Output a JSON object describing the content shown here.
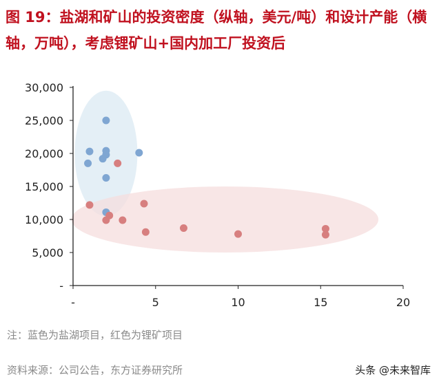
{
  "header": {
    "title": "图 19：盐湖和矿山的投资密度（纵轴，美元/吨）和设计产能（横轴，万吨），考虑锂矿山+国内加工厂投资后"
  },
  "chart_data": {
    "type": "scatter",
    "title": "",
    "xlabel": "",
    "ylabel": "",
    "xlim": [
      0,
      20
    ],
    "ylim": [
      0,
      30000
    ],
    "x_ticks": [
      0,
      5,
      10,
      15,
      20
    ],
    "x_tick_labels": [
      "-",
      "5",
      "10",
      "15",
      "20"
    ],
    "y_ticks": [
      0,
      5000,
      10000,
      15000,
      20000,
      25000,
      30000
    ],
    "y_tick_labels": [
      "-",
      "5,000",
      "10,000",
      "15,000",
      "20,000",
      "25,000",
      "30,000"
    ],
    "grid": false,
    "series": [
      {
        "color": "#7fa6d2",
        "points": [
          {
            "x": 2.0,
            "y": 25000
          },
          {
            "x": 1.0,
            "y": 20300
          },
          {
            "x": 2.0,
            "y": 20400
          },
          {
            "x": 2.0,
            "y": 19800
          },
          {
            "x": 1.8,
            "y": 19200
          },
          {
            "x": 0.9,
            "y": 18500
          },
          {
            "x": 4.0,
            "y": 20100
          },
          {
            "x": 2.0,
            "y": 16300
          },
          {
            "x": 2.0,
            "y": 11100
          }
        ]
      },
      {
        "color": "#d77f7f",
        "points": [
          {
            "x": 2.7,
            "y": 18500
          },
          {
            "x": 1.0,
            "y": 12200
          },
          {
            "x": 4.3,
            "y": 12400
          },
          {
            "x": 2.2,
            "y": 10600
          },
          {
            "x": 2.0,
            "y": 9900
          },
          {
            "x": 3.0,
            "y": 9900
          },
          {
            "x": 6.7,
            "y": 8700
          },
          {
            "x": 4.4,
            "y": 8100
          },
          {
            "x": 10.0,
            "y": 7800
          },
          {
            "x": 15.3,
            "y": 8600
          },
          {
            "x": 15.3,
            "y": 7700
          }
        ]
      }
    ],
    "highlights": [
      {
        "cx": 2.0,
        "cy": 20000,
        "rx": 1.9,
        "ry": 9500,
        "color": "#dbe9f3"
      },
      {
        "cx": 9.2,
        "cy": 10000,
        "rx": 9.3,
        "ry": 5000,
        "color": "#f5dedd"
      }
    ]
  },
  "footer": {
    "note": "注：蓝色为盐湖项目，红色为锂矿项目",
    "source": "资料来源：公司公告，东方证券研究所",
    "watermark": "头条 @未来智库"
  }
}
